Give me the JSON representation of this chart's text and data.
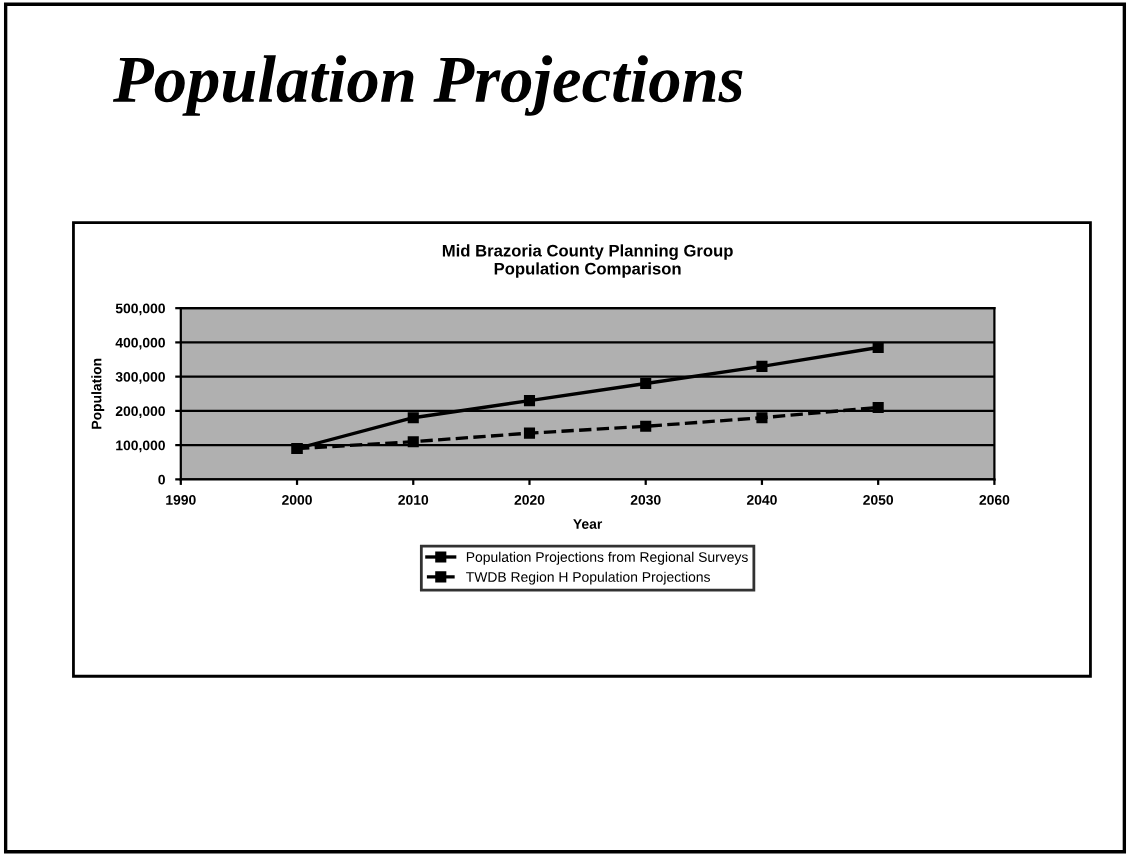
{
  "chart_data": {
    "type": "line",
    "title": "Population Projections",
    "subtitle": "Mid Brazoria County Planning Group\nPopulation Comparison",
    "xlabel": "Year",
    "ylabel": "Population",
    "x": [
      2000,
      2010,
      2020,
      2030,
      2040,
      2050
    ],
    "series": [
      {
        "name": "Population Projections from Regional Surveys",
        "color": "#000000",
        "values": [
          90000,
          180000,
          230000,
          280000,
          330000,
          385000
        ],
        "line_style": "solid"
      },
      {
        "name": "TWDB Region H Population Projections",
        "color": "#000000",
        "values": [
          90000,
          110000,
          135000,
          155000,
          180000,
          210000
        ],
        "line_style": "dashed"
      }
    ],
    "xlim": [
      1990,
      2060
    ],
    "xticks": [
      1990,
      2000,
      2010,
      2020,
      2030,
      2040,
      2050,
      2060
    ],
    "ylim": [
      0,
      500000
    ],
    "yticks": [
      {
        "value": 0,
        "label": "0"
      },
      {
        "value": 100000,
        "label": "100,000"
      },
      {
        "value": 200000,
        "label": "200,000"
      },
      {
        "value": 300000,
        "label": "300,000"
      },
      {
        "value": 400000,
        "label": "400,000"
      },
      {
        "value": 500000,
        "label": "500,000"
      }
    ],
    "grid": "y",
    "legend": "bottom",
    "marker": "square"
  }
}
